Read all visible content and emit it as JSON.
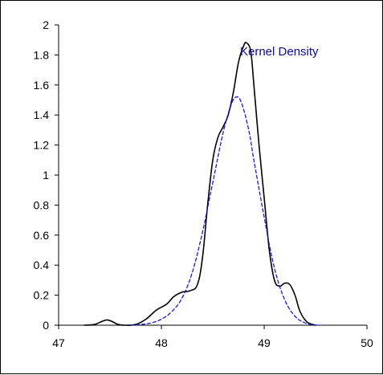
{
  "chart_data": {
    "type": "line",
    "title": "",
    "xlabel": "",
    "ylabel": "",
    "xlim": [
      47,
      50
    ],
    "ylim": [
      0,
      2
    ],
    "x_ticks": [
      47,
      48,
      49,
      50
    ],
    "y_ticks": [
      0,
      0.2,
      0.4,
      0.6,
      0.8,
      1,
      1.2,
      1.4,
      1.6,
      1.8,
      2
    ],
    "x_tick_labels": [
      "47",
      "48",
      "49",
      "50"
    ],
    "y_tick_labels": [
      "0",
      "0.2",
      "0.4",
      "0.6",
      "0.8",
      "1",
      "1.2",
      "1.4",
      "1.6",
      "1.8",
      "2"
    ],
    "grid": false,
    "annotation": "Kernel Density",
    "series": [
      {
        "style": "solid",
        "color": "#000000",
        "points": [
          [
            47.25,
            0.0
          ],
          [
            47.35,
            0.005
          ],
          [
            47.42,
            0.025
          ],
          [
            47.47,
            0.035
          ],
          [
            47.52,
            0.025
          ],
          [
            47.58,
            0.005
          ],
          [
            47.65,
            0.0
          ],
          [
            47.75,
            0.005
          ],
          [
            47.85,
            0.04
          ],
          [
            47.95,
            0.1
          ],
          [
            48.05,
            0.14
          ],
          [
            48.12,
            0.19
          ],
          [
            48.2,
            0.22
          ],
          [
            48.28,
            0.23
          ],
          [
            48.35,
            0.27
          ],
          [
            48.4,
            0.45
          ],
          [
            48.45,
            0.8
          ],
          [
            48.5,
            1.1
          ],
          [
            48.55,
            1.25
          ],
          [
            48.6,
            1.32
          ],
          [
            48.65,
            1.4
          ],
          [
            48.7,
            1.55
          ],
          [
            48.75,
            1.75
          ],
          [
            48.8,
            1.86
          ],
          [
            48.83,
            1.88
          ],
          [
            48.87,
            1.82
          ],
          [
            48.9,
            1.6
          ],
          [
            48.95,
            1.2
          ],
          [
            49.0,
            0.85
          ],
          [
            49.05,
            0.5
          ],
          [
            49.1,
            0.3
          ],
          [
            49.15,
            0.26
          ],
          [
            49.2,
            0.28
          ],
          [
            49.25,
            0.27
          ],
          [
            49.3,
            0.2
          ],
          [
            49.35,
            0.09
          ],
          [
            49.42,
            0.02
          ],
          [
            49.5,
            0.0
          ]
        ]
      },
      {
        "style": "dashed",
        "color": "#1a1acc",
        "points": [
          [
            47.7,
            0.0
          ],
          [
            47.8,
            0.005
          ],
          [
            47.9,
            0.015
          ],
          [
            48.0,
            0.04
          ],
          [
            48.1,
            0.09
          ],
          [
            48.2,
            0.18
          ],
          [
            48.3,
            0.35
          ],
          [
            48.4,
            0.62
          ],
          [
            48.5,
            0.95
          ],
          [
            48.6,
            1.28
          ],
          [
            48.68,
            1.47
          ],
          [
            48.73,
            1.52
          ],
          [
            48.78,
            1.48
          ],
          [
            48.85,
            1.3
          ],
          [
            48.9,
            1.1
          ],
          [
            49.0,
            0.72
          ],
          [
            49.1,
            0.38
          ],
          [
            49.2,
            0.17
          ],
          [
            49.3,
            0.06
          ],
          [
            49.4,
            0.015
          ],
          [
            49.5,
            0.002
          ],
          [
            49.55,
            0.0
          ]
        ]
      }
    ]
  }
}
